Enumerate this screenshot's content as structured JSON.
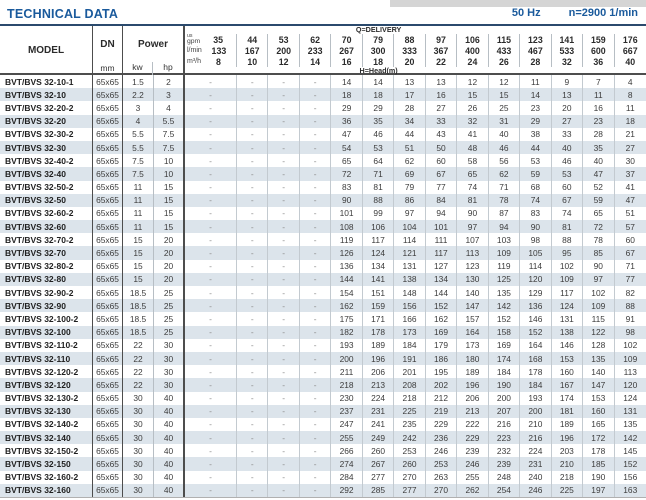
{
  "header": {
    "title": "TECHNICAL DATA",
    "frequency": "50 Hz",
    "speed": "n=2900 1/min"
  },
  "colors": {
    "accent_blue": "#1a5a9c",
    "rule_navy": "#2b4a6d",
    "row_stripe": "#dce4eb",
    "gray_band": "#d5d5d5",
    "border_dark": "#4d4d4d",
    "border_light": "#b7bec4"
  },
  "table": {
    "labels": {
      "model": "MODEL",
      "dn": "DN",
      "dn_unit": "mm",
      "power": "Power",
      "kw": "kw",
      "hp": "hp",
      "delivery": "Q=DELIVERY",
      "head": "H=Head(m)"
    },
    "units": {
      "gpm_line1": "us",
      "gpm_line2": "gpm",
      "lmin": "l/min",
      "m3h": "m³/h"
    },
    "header_values": {
      "gpm": [
        35,
        44,
        53,
        62,
        70,
        79,
        88,
        97,
        106,
        115,
        123,
        141,
        159,
        176
      ],
      "lmin": [
        133,
        167,
        200,
        233,
        267,
        300,
        333,
        367,
        400,
        433,
        467,
        533,
        600,
        667
      ],
      "m3h": [
        8,
        10,
        12,
        14,
        16,
        18,
        20,
        22,
        24,
        26,
        28,
        32,
        36,
        40
      ]
    },
    "rows": [
      {
        "model": "BVT/BVS 32-10-1",
        "dn": "65x65",
        "kw": "1.5",
        "hp": "2",
        "head": [
          "-",
          "-",
          "-",
          "-",
          14,
          14,
          13,
          13,
          12,
          12,
          11,
          9,
          7,
          4
        ]
      },
      {
        "model": "BVT/BVS 32-10",
        "dn": "65x65",
        "kw": "2.2",
        "hp": "3",
        "head": [
          "-",
          "-",
          "-",
          "-",
          18,
          18,
          17,
          16,
          15,
          15,
          14,
          13,
          11,
          8
        ]
      },
      {
        "model": "BVT/BVS 32-20-2",
        "dn": "65x65",
        "kw": "3",
        "hp": "4",
        "head": [
          "-",
          "-",
          "-",
          "-",
          29,
          29,
          28,
          27,
          26,
          25,
          23,
          20,
          16,
          11
        ]
      },
      {
        "model": "BVT/BVS 32-20",
        "dn": "65x65",
        "kw": "4",
        "hp": "5.5",
        "head": [
          "-",
          "-",
          "-",
          "-",
          36,
          35,
          34,
          33,
          32,
          31,
          29,
          27,
          23,
          18
        ]
      },
      {
        "model": "BVT/BVS 32-30-2",
        "dn": "65x65",
        "kw": "5.5",
        "hp": "7.5",
        "head": [
          "-",
          "-",
          "-",
          "-",
          47,
          46,
          44,
          43,
          41,
          40,
          38,
          33,
          28,
          21
        ]
      },
      {
        "model": "BVT/BVS 32-30",
        "dn": "65x65",
        "kw": "5.5",
        "hp": "7.5",
        "head": [
          "-",
          "-",
          "-",
          "-",
          54,
          53,
          51,
          50,
          48,
          46,
          44,
          40,
          35,
          27
        ]
      },
      {
        "model": "BVT/BVS 32-40-2",
        "dn": "65x65",
        "kw": "7.5",
        "hp": "10",
        "head": [
          "-",
          "-",
          "-",
          "-",
          65,
          64,
          62,
          60,
          58,
          56,
          53,
          46,
          40,
          30
        ]
      },
      {
        "model": "BVT/BVS 32-40",
        "dn": "65x65",
        "kw": "7.5",
        "hp": "10",
        "head": [
          "-",
          "-",
          "-",
          "-",
          72,
          71,
          69,
          67,
          65,
          62,
          59,
          53,
          47,
          37
        ]
      },
      {
        "model": "BVT/BVS 32-50-2",
        "dn": "65x65",
        "kw": "11",
        "hp": "15",
        "head": [
          "-",
          "-",
          "-",
          "-",
          83,
          81,
          79,
          77,
          74,
          71,
          68,
          60,
          52,
          41
        ]
      },
      {
        "model": "BVT/BVS 32-50",
        "dn": "65x65",
        "kw": "11",
        "hp": "15",
        "head": [
          "-",
          "-",
          "-",
          "-",
          90,
          88,
          86,
          84,
          81,
          78,
          74,
          67,
          59,
          47
        ]
      },
      {
        "model": "BVT/BVS 32-60-2",
        "dn": "65x65",
        "kw": "11",
        "hp": "15",
        "head": [
          "-",
          "-",
          "-",
          "-",
          101,
          99,
          97,
          94,
          90,
          87,
          83,
          74,
          65,
          51
        ]
      },
      {
        "model": "BVT/BVS 32-60",
        "dn": "65x65",
        "kw": "11",
        "hp": "15",
        "head": [
          "-",
          "-",
          "-",
          "-",
          108,
          106,
          104,
          101,
          97,
          94,
          90,
          81,
          72,
          57
        ]
      },
      {
        "model": "BVT/BVS 32-70-2",
        "dn": "65x65",
        "kw": "15",
        "hp": "20",
        "head": [
          "-",
          "-",
          "-",
          "-",
          119,
          117,
          114,
          111,
          107,
          103,
          98,
          88,
          78,
          60
        ]
      },
      {
        "model": "BVT/BVS 32-70",
        "dn": "65x65",
        "kw": "15",
        "hp": "20",
        "head": [
          "-",
          "-",
          "-",
          "-",
          126,
          124,
          121,
          117,
          113,
          109,
          105,
          95,
          85,
          67
        ]
      },
      {
        "model": "BVT/BVS 32-80-2",
        "dn": "65x65",
        "kw": "15",
        "hp": "20",
        "head": [
          "-",
          "-",
          "-",
          "-",
          136,
          134,
          131,
          127,
          123,
          119,
          114,
          102,
          90,
          71
        ]
      },
      {
        "model": "BVT/BVS 32-80",
        "dn": "65x65",
        "kw": "15",
        "hp": "20",
        "head": [
          "-",
          "-",
          "-",
          "-",
          144,
          141,
          138,
          134,
          130,
          125,
          120,
          109,
          97,
          77
        ]
      },
      {
        "model": "BVT/BVS 32-90-2",
        "dn": "65x65",
        "kw": "18.5",
        "hp": "25",
        "head": [
          "-",
          "-",
          "-",
          "-",
          154,
          151,
          148,
          144,
          140,
          135,
          129,
          117,
          102,
          82
        ]
      },
      {
        "model": "BVT/BVS 32-90",
        "dn": "65x65",
        "kw": "18.5",
        "hp": "25",
        "head": [
          "-",
          "-",
          "-",
          "-",
          162,
          159,
          156,
          152,
          147,
          142,
          136,
          124,
          109,
          88
        ]
      },
      {
        "model": "BVT/BVS 32-100-2",
        "dn": "65x65",
        "kw": "18.5",
        "hp": "25",
        "head": [
          "-",
          "-",
          "-",
          "-",
          175,
          171,
          166,
          162,
          157,
          152,
          146,
          131,
          115,
          91
        ]
      },
      {
        "model": "BVT/BVS 32-100",
        "dn": "65x65",
        "kw": "18.5",
        "hp": "25",
        "head": [
          "-",
          "-",
          "-",
          "-",
          182,
          178,
          173,
          169,
          164,
          158,
          152,
          138,
          122,
          98
        ]
      },
      {
        "model": "BVT/BVS 32-110-2",
        "dn": "65x65",
        "kw": "22",
        "hp": "30",
        "head": [
          "-",
          "-",
          "-",
          "-",
          193,
          189,
          184,
          179,
          173,
          169,
          164,
          146,
          128,
          102
        ]
      },
      {
        "model": "BVT/BVS 32-110",
        "dn": "65x65",
        "kw": "22",
        "hp": "30",
        "head": [
          "-",
          "-",
          "-",
          "-",
          200,
          196,
          191,
          186,
          180,
          174,
          168,
          153,
          135,
          109
        ]
      },
      {
        "model": "BVT/BVS 32-120-2",
        "dn": "65x65",
        "kw": "22",
        "hp": "30",
        "head": [
          "-",
          "-",
          "-",
          "-",
          211,
          206,
          201,
          195,
          189,
          184,
          178,
          160,
          140,
          113
        ]
      },
      {
        "model": "BVT/BVS 32-120",
        "dn": "65x65",
        "kw": "22",
        "hp": "30",
        "head": [
          "-",
          "-",
          "-",
          "-",
          218,
          213,
          208,
          202,
          196,
          190,
          184,
          167,
          147,
          120
        ]
      },
      {
        "model": "BVT/BVS 32-130-2",
        "dn": "65x65",
        "kw": "30",
        "hp": "40",
        "head": [
          "-",
          "-",
          "-",
          "-",
          230,
          224,
          218,
          212,
          206,
          200,
          193,
          174,
          153,
          124
        ]
      },
      {
        "model": "BVT/BVS 32-130",
        "dn": "65x65",
        "kw": "30",
        "hp": "40",
        "head": [
          "-",
          "-",
          "-",
          "-",
          237,
          231,
          225,
          219,
          213,
          207,
          200,
          181,
          160,
          131
        ]
      },
      {
        "model": "BVT/BVS 32-140-2",
        "dn": "65x65",
        "kw": "30",
        "hp": "40",
        "head": [
          "-",
          "-",
          "-",
          "-",
          247,
          241,
          235,
          229,
          222,
          216,
          210,
          189,
          165,
          135
        ]
      },
      {
        "model": "BVT/BVS 32-140",
        "dn": "65x65",
        "kw": "30",
        "hp": "40",
        "head": [
          "-",
          "-",
          "-",
          "-",
          255,
          249,
          242,
          236,
          229,
          223,
          216,
          196,
          172,
          142
        ]
      },
      {
        "model": "BVT/BVS 32-150-2",
        "dn": "65x65",
        "kw": "30",
        "hp": "40",
        "head": [
          "-",
          "-",
          "-",
          "-",
          266,
          260,
          253,
          246,
          239,
          232,
          224,
          203,
          178,
          145
        ]
      },
      {
        "model": "BVT/BVS 32-150",
        "dn": "65x65",
        "kw": "30",
        "hp": "40",
        "head": [
          "-",
          "-",
          "-",
          "-",
          274,
          267,
          260,
          253,
          246,
          239,
          231,
          210,
          185,
          152
        ]
      },
      {
        "model": "BVT/BVS 32-160-2",
        "dn": "65x65",
        "kw": "30",
        "hp": "40",
        "head": [
          "-",
          "-",
          "-",
          "-",
          284,
          277,
          270,
          263,
          255,
          248,
          240,
          218,
          190,
          156
        ]
      },
      {
        "model": "BVT/BVS 32-160",
        "dn": "65x65",
        "kw": "30",
        "hp": "40",
        "head": [
          "-",
          "-",
          "-",
          "-",
          292,
          285,
          277,
          270,
          262,
          254,
          246,
          225,
          197,
          163
        ]
      }
    ]
  }
}
